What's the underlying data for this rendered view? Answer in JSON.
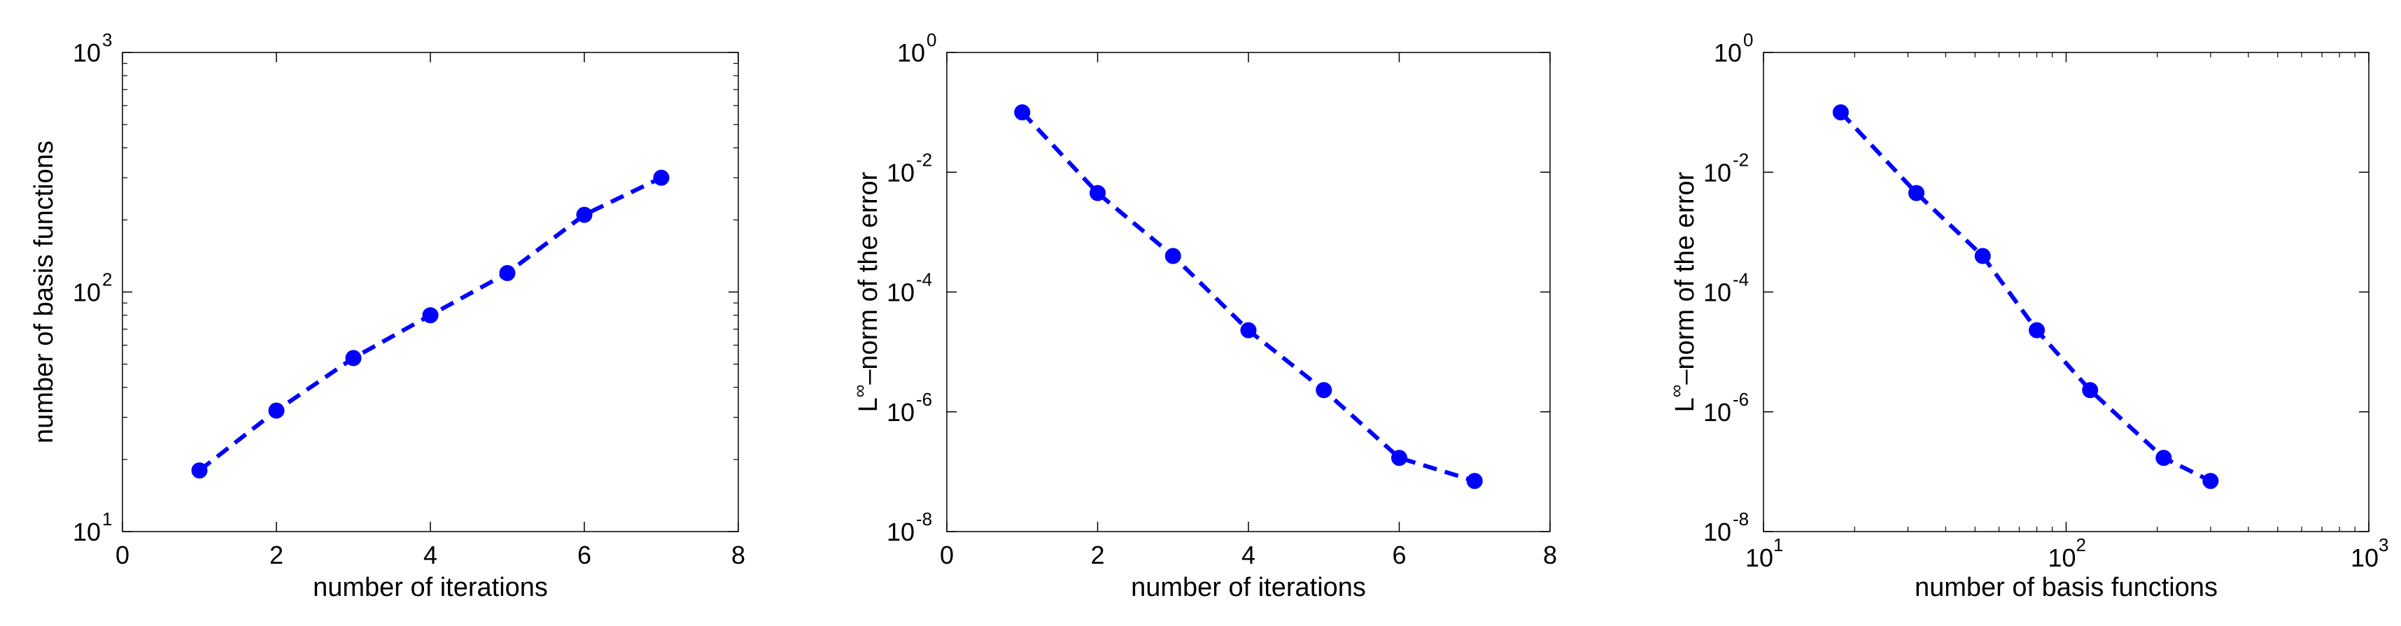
{
  "colors": {
    "series": "#0000ff",
    "axes": "#000000",
    "background": "#ffffff"
  },
  "chart_data": [
    {
      "type": "line",
      "xscale": "linear",
      "yscale": "log",
      "xlim": [
        0,
        8
      ],
      "ylim": [
        10,
        1000
      ],
      "xticks": [
        0,
        2,
        4,
        6,
        8
      ],
      "xtick_labels": [
        "0",
        "2",
        "4",
        "6",
        "8"
      ],
      "yticks": [
        10,
        100,
        1000
      ],
      "ytick_labels": [
        {
          "base": "10",
          "exp": "1"
        },
        {
          "base": "10",
          "exp": "2"
        },
        {
          "base": "10",
          "exp": "3"
        }
      ],
      "xlabel": "number of iterations",
      "ylabel": "number of basis functions",
      "grid": false,
      "line_style": "dashed",
      "marker": "circle",
      "series": [
        {
          "x": [
            1,
            2,
            3,
            4,
            5,
            6,
            7
          ],
          "y": [
            18,
            32,
            53,
            80,
            120,
            210,
            300
          ]
        }
      ]
    },
    {
      "type": "line",
      "xscale": "linear",
      "yscale": "log",
      "xlim": [
        0,
        8
      ],
      "ylim": [
        1e-08,
        1
      ],
      "xticks": [
        0,
        2,
        4,
        6,
        8
      ],
      "xtick_labels": [
        "0",
        "2",
        "4",
        "6",
        "8"
      ],
      "yticks": [
        1e-08,
        1e-06,
        0.0001,
        0.01,
        1
      ],
      "ytick_labels": [
        {
          "base": "10",
          "exp": "-8"
        },
        {
          "base": "10",
          "exp": "-6"
        },
        {
          "base": "10",
          "exp": "-4"
        },
        {
          "base": "10",
          "exp": "-2"
        },
        {
          "base": "10",
          "exp": "0"
        }
      ],
      "xlabel": "number of iterations",
      "ylabel": {
        "base": "L",
        "sup": "∞",
        "rest": "–norm of the error"
      },
      "grid": false,
      "line_style": "dashed",
      "marker": "circle",
      "series": [
        {
          "x": [
            1,
            2,
            3,
            4,
            5,
            6,
            7
          ],
          "y": [
            0.1,
            0.0045,
            0.0004,
            2.3e-05,
            2.3e-06,
            1.7e-07,
            7e-08
          ]
        }
      ]
    },
    {
      "type": "line",
      "xscale": "log",
      "yscale": "log",
      "xlim": [
        10,
        1000
      ],
      "ylim": [
        1e-08,
        1
      ],
      "xticks": [
        10,
        100,
        1000
      ],
      "xtick_labels": [
        {
          "base": "10",
          "exp": "1"
        },
        {
          "base": "10",
          "exp": "2"
        },
        {
          "base": "10",
          "exp": "3"
        }
      ],
      "yticks": [
        1e-08,
        1e-06,
        0.0001,
        0.01,
        1
      ],
      "ytick_labels": [
        {
          "base": "10",
          "exp": "-8"
        },
        {
          "base": "10",
          "exp": "-6"
        },
        {
          "base": "10",
          "exp": "-4"
        },
        {
          "base": "10",
          "exp": "-2"
        },
        {
          "base": "10",
          "exp": "0"
        }
      ],
      "xlabel": "number of basis functions",
      "ylabel": {
        "base": "L",
        "sup": "∞",
        "rest": "–norm of the error"
      },
      "grid": false,
      "line_style": "dashed",
      "marker": "circle",
      "series": [
        {
          "x": [
            18,
            32,
            53,
            80,
            120,
            210,
            300
          ],
          "y": [
            0.1,
            0.0045,
            0.0004,
            2.3e-05,
            2.3e-06,
            1.7e-07,
            7e-08
          ]
        }
      ]
    }
  ]
}
